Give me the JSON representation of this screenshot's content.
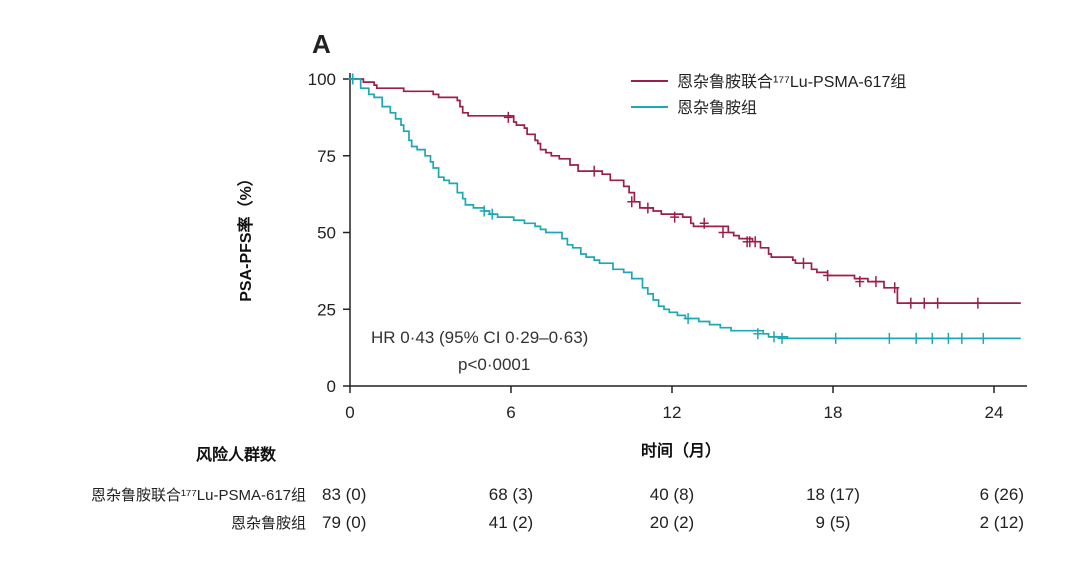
{
  "chart_data": {
    "type": "line",
    "panel_label": "A",
    "xlabel": "时间（月）",
    "ylabel": "PSA-PFS率（%）",
    "xlim": [
      0,
      25
    ],
    "ylim": [
      0,
      100
    ],
    "xticks": [
      0,
      6,
      12,
      18,
      24
    ],
    "yticks": [
      0,
      25,
      50,
      75,
      100
    ],
    "grid": false,
    "legend_position": "top-right",
    "annotations": [
      "HR 0·43 (95% CI 0·29–0·63)",
      "p<0·0001"
    ],
    "series": [
      {
        "name": "恩杂鲁胺联合¹⁷⁷Lu-PSMA-617组",
        "color": "#9c1f4a",
        "x": [
          0,
          0.5,
          0.9,
          1.0,
          2.0,
          3.1,
          3.3,
          4.0,
          4.1,
          4.2,
          4.4,
          6.1,
          6.2,
          6.5,
          6.6,
          6.9,
          7.0,
          7.1,
          7.3,
          7.5,
          7.8,
          8.2,
          8.5,
          9.4,
          9.7,
          10.2,
          10.4,
          10.6,
          10.8,
          11.3,
          11.6,
          12.4,
          12.7,
          12.8,
          14.1,
          14.3,
          14.5,
          15.0,
          15.3,
          15.6,
          15.7,
          16.5,
          16.6,
          17.2,
          17.4,
          17.8,
          18.8,
          19.3,
          19.9,
          20.4,
          25
        ],
        "y": [
          100,
          99,
          98,
          97,
          96,
          95,
          94,
          93,
          91,
          89,
          88,
          86,
          85,
          84,
          82,
          80,
          79,
          77,
          76,
          75,
          74,
          72,
          70,
          69,
          67,
          65,
          63,
          60,
          58,
          57,
          56,
          55,
          53,
          52,
          50,
          49,
          48,
          47,
          45,
          43,
          42,
          41,
          40,
          38,
          37,
          36,
          35,
          34,
          32,
          27,
          27
        ],
        "censors": [
          [
            0.1,
            100
          ],
          [
            5.9,
            87.5
          ],
          [
            9.1,
            70
          ],
          [
            10.5,
            60
          ],
          [
            11.1,
            58
          ],
          [
            12.1,
            55
          ],
          [
            13.2,
            53
          ],
          [
            13.9,
            50
          ],
          [
            14.8,
            47
          ],
          [
            14.9,
            47
          ],
          [
            15.1,
            47
          ],
          [
            16.9,
            40
          ],
          [
            17.8,
            36
          ],
          [
            19.0,
            34
          ],
          [
            19.6,
            34
          ],
          [
            20.3,
            32
          ],
          [
            20.9,
            27
          ],
          [
            21.4,
            27
          ],
          [
            21.9,
            27
          ],
          [
            23.4,
            27
          ]
        ]
      },
      {
        "name": "恩杂鲁胺组",
        "color": "#1ea7b4",
        "x": [
          0,
          0.4,
          0.7,
          0.9,
          1.2,
          1.5,
          1.7,
          1.9,
          2.0,
          2.2,
          2.3,
          2.5,
          2.8,
          3.0,
          3.1,
          3.3,
          3.5,
          3.7,
          4.0,
          4.2,
          4.3,
          4.6,
          5.0,
          5.2,
          5.5,
          6.1,
          6.5,
          6.9,
          7.1,
          7.3,
          7.9,
          8.1,
          8.3,
          8.6,
          8.8,
          9.1,
          9.3,
          9.8,
          10.2,
          10.5,
          10.9,
          11.1,
          11.3,
          11.5,
          11.7,
          11.9,
          12.2,
          12.5,
          13.0,
          13.4,
          13.8,
          14.2,
          15.4,
          15.6,
          16.3,
          25
        ],
        "y": [
          100,
          97,
          95,
          94,
          91,
          89,
          87,
          85,
          83,
          80,
          78,
          77,
          75,
          73,
          71,
          68,
          67,
          66,
          63,
          61,
          59,
          58,
          57,
          56,
          55,
          54,
          53,
          52,
          51,
          50,
          48,
          46,
          45,
          43,
          42,
          41,
          40,
          38,
          37,
          35,
          32,
          30,
          28,
          26,
          25,
          24,
          23,
          22,
          21,
          20,
          19,
          18,
          17,
          16,
          15.5,
          15.5
        ],
        "censors": [
          [
            0.1,
            100
          ],
          [
            5.0,
            57
          ],
          [
            5.3,
            56
          ],
          [
            12.6,
            22
          ],
          [
            15.2,
            17
          ],
          [
            15.8,
            16
          ],
          [
            16.1,
            15.5
          ],
          [
            18.1,
            15.5
          ],
          [
            20.1,
            15.5
          ],
          [
            21.1,
            15.5
          ],
          [
            21.7,
            15.5
          ],
          [
            22.3,
            15.5
          ],
          [
            22.8,
            15.5
          ],
          [
            23.6,
            15.5
          ]
        ]
      }
    ]
  },
  "risk_table": {
    "title": "风险人群数",
    "timepoints": [
      0,
      6,
      12,
      18,
      24
    ],
    "rows": [
      {
        "label": "恩杂鲁胺联合¹⁷⁷Lu-PSMA-617组",
        "values": [
          "83 (0)",
          "68 (3)",
          "40 (8)",
          "18 (17)",
          "6 (26)"
        ]
      },
      {
        "label": "恩杂鲁胺组",
        "values": [
          "79 (0)",
          "41 (2)",
          "20 (2)",
          "9 (5)",
          "2 (12)"
        ]
      }
    ]
  }
}
